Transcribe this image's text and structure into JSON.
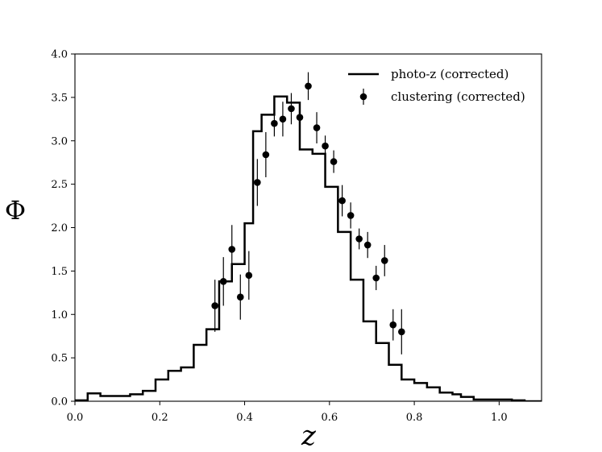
{
  "chart_data": {
    "type": "line",
    "title": "",
    "xlabel": "z",
    "ylabel": "Φ",
    "xlim": [
      0.0,
      1.1
    ],
    "ylim": [
      0.0,
      4.0
    ],
    "xticks": [
      "0.0",
      "0.2",
      "0.4",
      "0.6",
      "0.8",
      "1.0"
    ],
    "yticks": [
      "0.0",
      "0.5",
      "1.0",
      "1.5",
      "2.0",
      "2.5",
      "3.0",
      "3.5",
      "4.0"
    ],
    "grid": false,
    "legend_position": "top-right",
    "colors": {
      "line": "#000000",
      "points": "#000000"
    },
    "series": [
      {
        "name": "photo-z (corrected)",
        "kind": "step",
        "bin_edges": [
          0.0,
          0.03,
          0.06,
          0.13,
          0.16,
          0.19,
          0.22,
          0.25,
          0.28,
          0.31,
          0.34,
          0.37,
          0.4,
          0.42,
          0.44,
          0.47,
          0.5,
          0.53,
          0.56,
          0.59,
          0.62,
          0.65,
          0.68,
          0.71,
          0.74,
          0.77,
          0.8,
          0.83,
          0.86,
          0.89,
          0.91,
          0.94,
          0.97,
          1.0,
          1.03,
          1.06,
          1.1
        ],
        "values": [
          0.01,
          0.09,
          0.06,
          0.08,
          0.12,
          0.25,
          0.35,
          0.39,
          0.65,
          0.83,
          1.38,
          1.58,
          2.05,
          3.11,
          3.3,
          3.51,
          3.44,
          2.9,
          2.85,
          2.47,
          1.95,
          1.4,
          0.92,
          0.67,
          0.42,
          0.25,
          0.21,
          0.16,
          0.1,
          0.08,
          0.05,
          0.02,
          0.02,
          0.02,
          0.01,
          0.0
        ]
      },
      {
        "name": "clustering (corrected)",
        "kind": "errorbar",
        "points": [
          {
            "x": 0.33,
            "y": 1.1,
            "err": 0.3
          },
          {
            "x": 0.35,
            "y": 1.38,
            "err": 0.28
          },
          {
            "x": 0.37,
            "y": 1.75,
            "err": 0.28
          },
          {
            "x": 0.39,
            "y": 1.2,
            "err": 0.26
          },
          {
            "x": 0.41,
            "y": 1.45,
            "err": 0.28
          },
          {
            "x": 0.43,
            "y": 2.52,
            "err": 0.27
          },
          {
            "x": 0.45,
            "y": 2.84,
            "err": 0.26
          },
          {
            "x": 0.47,
            "y": 3.2,
            "err": 0.15
          },
          {
            "x": 0.49,
            "y": 3.25,
            "err": 0.2
          },
          {
            "x": 0.51,
            "y": 3.37,
            "err": 0.18
          },
          {
            "x": 0.53,
            "y": 3.27,
            "err": 0.16
          },
          {
            "x": 0.55,
            "y": 3.63,
            "err": 0.16
          },
          {
            "x": 0.57,
            "y": 3.15,
            "err": 0.18
          },
          {
            "x": 0.59,
            "y": 2.94,
            "err": 0.12
          },
          {
            "x": 0.61,
            "y": 2.76,
            "err": 0.13
          },
          {
            "x": 0.63,
            "y": 2.31,
            "err": 0.18
          },
          {
            "x": 0.65,
            "y": 2.14,
            "err": 0.15
          },
          {
            "x": 0.67,
            "y": 1.87,
            "err": 0.12
          },
          {
            "x": 0.69,
            "y": 1.8,
            "err": 0.15
          },
          {
            "x": 0.71,
            "y": 1.42,
            "err": 0.14
          },
          {
            "x": 0.73,
            "y": 1.62,
            "err": 0.18
          },
          {
            "x": 0.75,
            "y": 0.88,
            "err": 0.18
          },
          {
            "x": 0.77,
            "y": 0.8,
            "err": 0.26
          }
        ]
      }
    ]
  }
}
